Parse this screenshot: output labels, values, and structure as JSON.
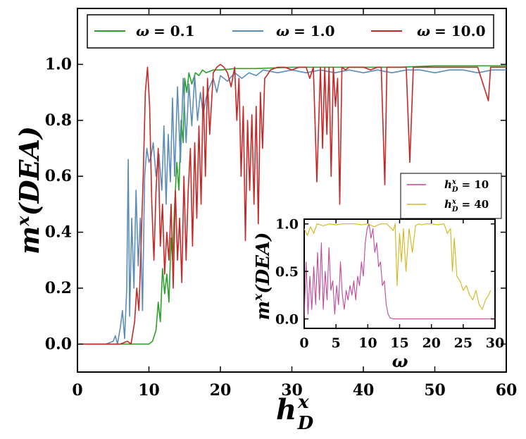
{
  "chart_data": [
    {
      "type": "line",
      "role": "main",
      "xlabel": "h_D^x",
      "xlabel_base": "h",
      "xlabel_sup": "x",
      "xlabel_sub": "D",
      "ylabel": "m^x(DEA)",
      "xlim": [
        0,
        60
      ],
      "ylim": [
        -0.1,
        1.2
      ],
      "xticks": [
        0,
        10,
        20,
        30,
        40,
        50,
        60
      ],
      "xtick_labels": [
        "0",
        "10",
        "20",
        "30",
        "40",
        "50",
        "60"
      ],
      "yticks": [
        0.0,
        0.2,
        0.4,
        0.6,
        0.8,
        1.0
      ],
      "ytick_labels": [
        "0.0",
        "0.2",
        "0.4",
        "0.6",
        "0.8",
        "1.0"
      ],
      "legend_position": "top",
      "series": [
        {
          "name": "ω = 0.1",
          "label_symbol": "ω",
          "label_value": "= 0.1",
          "color": "#2ca02c",
          "x": [
            0,
            2,
            4,
            6,
            8,
            9,
            10,
            10.5,
            11,
            11.3,
            11.6,
            11.9,
            12.2,
            12.5,
            12.8,
            13.1,
            13.3,
            13.6,
            13.9,
            14.2,
            14.5,
            14.8,
            15,
            15.3,
            15.6,
            16,
            16.5,
            17,
            17.5,
            18,
            19,
            20,
            22,
            25,
            30,
            35,
            40,
            45,
            50,
            55,
            60
          ],
          "y": [
            0,
            0,
            0,
            0,
            0,
            0,
            0,
            0.01,
            0.05,
            0.15,
            0.08,
            0.27,
            0.18,
            0.25,
            0.15,
            0.38,
            0.3,
            0.5,
            0.65,
            0.55,
            0.8,
            0.72,
            0.95,
            0.9,
            0.97,
            0.93,
            0.97,
            0.96,
            0.98,
            0.97,
            0.98,
            0.98,
            0.985,
            0.985,
            0.99,
            0.99,
            0.99,
            0.99,
            0.995,
            0.995,
            0.995
          ]
        },
        {
          "name": "ω = 1.0",
          "label_symbol": "ω",
          "label_value": "= 1.0",
          "color": "#5b8db8",
          "x": [
            0,
            2,
            4,
            5,
            5.3,
            5.6,
            6,
            6.3,
            6.6,
            6.9,
            7.1,
            7.3,
            7.6,
            7.9,
            8.2,
            8.5,
            8.8,
            9.1,
            9.4,
            9.7,
            10,
            10.3,
            10.6,
            11,
            11.4,
            11.8,
            12.1,
            12.4,
            12.7,
            13,
            13.3,
            13.6,
            14,
            14.4,
            14.8,
            15.2,
            15.6,
            16,
            16.4,
            16.8,
            17.2,
            17.6,
            18,
            18.5,
            19,
            19.5,
            20,
            21,
            22,
            23,
            24,
            25,
            26,
            28,
            30,
            32,
            34,
            36,
            38,
            40,
            42,
            44,
            46,
            48,
            50,
            52,
            54,
            56,
            58,
            60
          ],
          "y": [
            0,
            0,
            0,
            0.01,
            0.03,
            0.0,
            0.06,
            0.12,
            0.02,
            0.2,
            0.66,
            0.1,
            0.45,
            0.2,
            0.55,
            0.28,
            0.45,
            0.12,
            0.6,
            0.7,
            0.65,
            0.67,
            0.72,
            0.6,
            0.68,
            0.55,
            0.78,
            0.5,
            0.75,
            0.58,
            0.88,
            0.6,
            0.92,
            0.65,
            0.95,
            0.72,
            0.93,
            0.78,
            0.96,
            0.8,
            0.9,
            0.82,
            0.88,
            0.92,
            0.95,
            0.9,
            0.96,
            0.94,
            0.97,
            0.95,
            0.97,
            0.96,
            0.98,
            0.97,
            0.98,
            0.97,
            0.98,
            0.97,
            0.98,
            0.97,
            0.98,
            0.97,
            0.98,
            0.98,
            0.97,
            0.98,
            0.98,
            0.97,
            0.98,
            0.98
          ]
        },
        {
          "name": "ω = 10.0",
          "label_symbol": "ω",
          "label_value": "= 10.0",
          "color": "#c62828",
          "x": [
            0,
            2,
            4,
            6,
            7,
            7.5,
            8,
            8.3,
            8.6,
            8.9,
            9.2,
            9.5,
            9.8,
            10.1,
            10.4,
            10.7,
            11,
            11.3,
            11.6,
            11.9,
            12.2,
            12.5,
            12.8,
            13.1,
            13.4,
            13.7,
            14,
            14.3,
            14.6,
            14.9,
            15.2,
            15.5,
            15.8,
            16.1,
            16.4,
            16.7,
            17,
            17.3,
            17.6,
            17.9,
            18.2,
            18.5,
            19,
            19.5,
            20,
            20.5,
            21,
            21.5,
            22,
            22.3,
            22.6,
            22.9,
            23.2,
            23.5,
            23.8,
            24.1,
            24.4,
            24.7,
            25,
            25.3,
            25.6,
            25.9,
            26.2,
            26.5,
            27,
            28,
            29,
            30,
            31,
            32,
            32.5,
            33,
            33.5,
            34,
            34.3,
            34.6,
            34.9,
            35.2,
            35.5,
            35.8,
            36.1,
            36.4,
            36.7,
            37,
            37.5,
            38,
            39,
            40,
            41,
            42,
            42.5,
            43,
            43.3,
            43.6,
            44,
            45,
            46,
            46.5,
            47,
            47.2,
            47.5,
            48,
            50,
            52,
            54,
            56,
            57.5,
            57.8,
            58.1,
            58.5,
            59,
            60
          ],
          "y": [
            0,
            0,
            0,
            0,
            0.01,
            0.0,
            0.08,
            0.2,
            0.12,
            0.35,
            0.6,
            0.9,
            0.99,
            0.85,
            0.5,
            0.3,
            0.55,
            0.7,
            0.35,
            0.5,
            0.25,
            0.4,
            0.3,
            0.5,
            0.2,
            0.55,
            0.3,
            0.45,
            0.22,
            0.6,
            0.3,
            0.55,
            0.7,
            0.35,
            0.72,
            0.45,
            0.78,
            0.5,
            0.92,
            0.6,
            0.95,
            0.75,
            0.97,
            0.99,
            1.0,
            0.99,
            0.97,
            0.92,
            0.99,
            0.8,
            0.95,
            0.6,
            0.85,
            0.37,
            0.8,
            0.55,
            0.82,
            0.5,
            0.85,
            0.43,
            0.9,
            0.7,
            0.95,
            0.96,
            0.98,
            0.99,
            0.99,
            0.98,
            0.99,
            0.99,
            0.95,
            0.99,
            0.58,
            0.99,
            0.7,
            0.99,
            0.75,
            0.99,
            0.6,
            0.99,
            0.85,
            0.95,
            0.5,
            0.99,
            0.98,
            0.99,
            0.99,
            0.99,
            0.98,
            0.99,
            0.99,
            0.57,
            0.99,
            0.99,
            0.99,
            0.99,
            0.99,
            0.65,
            0.99,
            0.99,
            0.99,
            0.99,
            0.99,
            0.99,
            0.99,
            0.99,
            0.87,
            0.99,
            0.99,
            0.99,
            0.99,
            0.99
          ]
        }
      ]
    },
    {
      "type": "line",
      "role": "inset",
      "xlabel": "ω",
      "ylabel": "m^x(DEA)",
      "xlim": [
        0,
        30
      ],
      "ylim": [
        -0.1,
        1.05
      ],
      "xticks": [
        0,
        5,
        10,
        15,
        20,
        25,
        30
      ],
      "xtick_labels": [
        "0",
        "5",
        "10",
        "15",
        "20",
        "25",
        "30"
      ],
      "yticks": [
        0.0,
        0.5,
        1.0
      ],
      "ytick_labels": [
        "0.0",
        "0.5",
        "1.0"
      ],
      "legend_position": "top-right",
      "series": [
        {
          "name": "h_D^x = 10",
          "label_value": "= 10",
          "color": "#c0479c",
          "x": [
            0,
            0.3,
            0.6,
            0.9,
            1.2,
            1.5,
            1.8,
            2.1,
            2.4,
            2.7,
            3.0,
            3.3,
            3.6,
            3.9,
            4.2,
            4.5,
            4.8,
            5.1,
            5.4,
            5.7,
            6.0,
            6.3,
            6.6,
            6.9,
            7.2,
            7.5,
            7.8,
            8.1,
            8.4,
            8.7,
            9.0,
            9.3,
            9.6,
            9.9,
            10.2,
            10.5,
            10.8,
            11.1,
            11.4,
            11.7,
            12.0,
            12.3,
            12.6,
            12.9,
            13.2,
            13.5,
            14,
            15,
            20,
            25,
            30
          ],
          "y": [
            0.0,
            0.6,
            0.05,
            0.45,
            0.1,
            0.55,
            0.15,
            0.7,
            0.2,
            0.8,
            0.1,
            0.5,
            0.2,
            0.75,
            0.3,
            0.4,
            0.05,
            0.35,
            0.15,
            0.6,
            0.25,
            0.1,
            0.3,
            0.2,
            0.35,
            0.25,
            0.4,
            0.2,
            0.45,
            0.35,
            0.6,
            0.45,
            0.8,
            0.95,
            1.0,
            0.85,
            0.95,
            0.7,
            0.8,
            0.55,
            0.6,
            0.35,
            0.4,
            0.15,
            0.05,
            0.01,
            0.0,
            0.0,
            0.0,
            0.0,
            0.0
          ]
        },
        {
          "name": "h_D^x = 40",
          "label_value": "= 40",
          "color": "#d4b51c",
          "x": [
            0,
            0.5,
            1,
            1.5,
            2,
            3,
            4,
            5,
            6,
            7,
            8,
            9,
            10,
            11,
            12,
            13,
            14,
            14.3,
            14.6,
            15,
            15.3,
            15.6,
            16,
            16.5,
            17,
            17.5,
            18,
            18.5,
            19,
            20,
            21,
            22,
            22.5,
            23,
            23.3,
            23.6,
            24,
            24.5,
            25,
            25.5,
            26,
            26.5,
            27,
            27.5,
            28,
            28.5,
            29,
            29.3
          ],
          "y": [
            0.95,
            0.88,
            0.97,
            0.9,
            1.0,
            0.98,
            1.0,
            0.99,
            1.0,
            1.0,
            1.0,
            0.99,
            1.0,
            0.97,
            1.0,
            1.0,
            0.93,
            1.0,
            0.35,
            0.9,
            0.6,
            0.95,
            0.5,
            0.95,
            0.7,
            0.98,
            1.0,
            0.99,
            1.0,
            1.0,
            0.99,
            1.0,
            0.9,
            0.95,
            0.5,
            0.85,
            0.45,
            0.4,
            0.3,
            0.35,
            0.25,
            0.2,
            0.3,
            0.15,
            0.1,
            0.2,
            0.25,
            0.3
          ]
        }
      ]
    }
  ]
}
